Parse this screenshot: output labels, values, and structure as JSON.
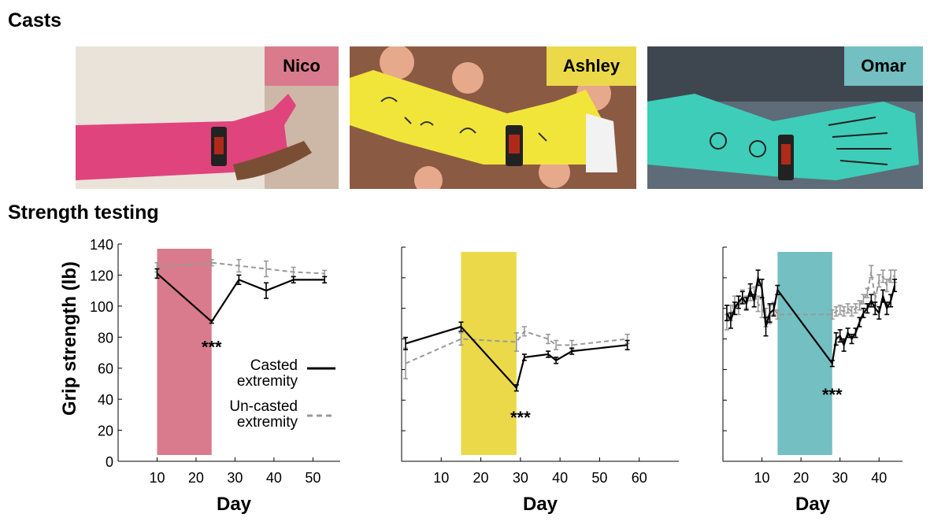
{
  "sections": {
    "casts_title": "Casts",
    "strength_title": "Strength testing"
  },
  "casts": [
    {
      "name": "Nico",
      "color": "#D97B8C",
      "cast_color": "#E0447C",
      "bg": "#CDB7A6"
    },
    {
      "name": "Ashley",
      "color": "#EBD94A",
      "cast_color": "#F2E53A",
      "bg": "#8B5A43"
    },
    {
      "name": "Omar",
      "color": "#73BFC2",
      "cast_color": "#3ECDB8",
      "bg": "#5D6C78"
    }
  ],
  "legend": {
    "casted_line1": "Casted",
    "casted_line2": "extremity",
    "uncasted_line1": "Un-casted",
    "uncasted_line2": "extremity"
  },
  "chart_data": [
    {
      "type": "line",
      "subject": "Nico",
      "ylabel": "Grip strength (lb)",
      "xlabel": "Day",
      "xlim": [
        0,
        57
      ],
      "ylim": [
        0,
        140
      ],
      "xticks": [
        10,
        20,
        30,
        40,
        50
      ],
      "yticks": [
        0,
        20,
        40,
        60,
        80,
        100,
        120,
        140
      ],
      "cast_period": [
        10,
        24
      ],
      "significance": {
        "label": "***",
        "x": 24,
        "y": 80
      },
      "series": [
        {
          "name": "Casted extremity",
          "style": "solid",
          "color": "#000000",
          "x": [
            10,
            24,
            31,
            38,
            45,
            53
          ],
          "y": [
            121,
            90,
            117,
            110,
            117,
            117
          ],
          "err": [
            3,
            1,
            3,
            5,
            2,
            2
          ]
        },
        {
          "name": "Un-casted extremity",
          "style": "dashed",
          "color": "#999999",
          "x": [
            10,
            24,
            31,
            38,
            45,
            53
          ],
          "y": [
            125,
            128,
            126,
            124,
            122,
            121
          ],
          "err": [
            3,
            2,
            4,
            5,
            3,
            2
          ]
        }
      ]
    },
    {
      "type": "line",
      "subject": "Ashley",
      "xlabel": "Day",
      "xlim": [
        0,
        70
      ],
      "ylim": [
        0,
        140
      ],
      "xticks": [
        10,
        20,
        30,
        40,
        50,
        60
      ],
      "yticks": [
        0,
        20,
        40,
        60,
        80,
        100,
        120,
        140
      ],
      "cast_period": [
        15,
        29
      ],
      "significance": {
        "label": "***",
        "x": 30,
        "y": 35
      },
      "series": [
        {
          "name": "Casted extremity",
          "style": "solid",
          "color": "#000000",
          "x": [
            1,
            15,
            29,
            31,
            37,
            39,
            43,
            57
          ],
          "y": [
            77,
            88,
            48,
            68,
            70,
            66,
            72,
            76
          ],
          "err": [
            4,
            3,
            2,
            2,
            2,
            2,
            2,
            3
          ]
        },
        {
          "name": "Un-casted extremity",
          "style": "dashed",
          "color": "#999999",
          "x": [
            1,
            15,
            29,
            31,
            37,
            39,
            43,
            57
          ],
          "y": [
            64,
            80,
            78,
            85,
            80,
            76,
            76,
            80
          ],
          "err": [
            10,
            4,
            6,
            3,
            3,
            3,
            3,
            3
          ]
        }
      ]
    },
    {
      "type": "line",
      "subject": "Omar",
      "xlabel": "Day",
      "xlim": [
        0,
        46
      ],
      "ylim": [
        0,
        140
      ],
      "xticks": [
        10,
        20,
        30,
        40
      ],
      "yticks": [
        0,
        20,
        40,
        60,
        80,
        100,
        120,
        140
      ],
      "cast_period": [
        14,
        28
      ],
      "significance": {
        "label": "***",
        "x": 28,
        "y": 50
      },
      "series": [
        {
          "name": "Casted extremity",
          "style": "solid",
          "color": "#000000",
          "x": [
            1,
            2,
            3,
            4,
            5,
            6,
            7,
            8,
            9,
            10,
            11,
            12,
            13,
            14,
            28,
            29,
            30,
            31,
            32,
            33,
            34,
            35,
            36,
            37,
            38,
            39,
            40,
            41,
            42,
            43,
            44
          ],
          "y": [
            97,
            92,
            100,
            104,
            107,
            103,
            112,
            105,
            120,
            113,
            88,
            97,
            99,
            112,
            64,
            80,
            82,
            76,
            84,
            80,
            84,
            91,
            97,
            100,
            105,
            100,
            97,
            108,
            100,
            105,
            115
          ],
          "err": [
            5,
            5,
            4,
            4,
            4,
            4,
            4,
            4,
            5,
            6,
            6,
            6,
            4,
            3,
            2,
            4,
            4,
            4,
            3,
            3,
            3,
            3,
            3,
            3,
            4,
            4,
            4,
            4,
            4,
            4,
            4
          ]
        },
        {
          "name": "Un-casted extremity",
          "style": "dashed",
          "color": "#999999",
          "x": [
            1,
            2,
            3,
            4,
            5,
            6,
            7,
            8,
            9,
            10,
            11,
            12,
            13,
            14,
            28,
            29,
            30,
            31,
            32,
            33,
            34,
            35,
            36,
            37,
            38,
            39,
            40,
            41,
            42,
            43,
            44
          ],
          "y": [
            91,
            97,
            104,
            100,
            108,
            104,
            109,
            110,
            103,
            100,
            94,
            96,
            100,
            96,
            96,
            98,
            99,
            98,
            100,
            98,
            100,
            102,
            106,
            110,
            124,
            106,
            118,
            121,
            115,
            121,
            121
          ],
          "err": [
            5,
            5,
            4,
            4,
            4,
            4,
            4,
            4,
            5,
            6,
            6,
            6,
            4,
            3,
            3,
            3,
            3,
            3,
            3,
            3,
            3,
            3,
            3,
            3,
            4,
            4,
            4,
            4,
            4,
            4,
            4
          ]
        }
      ]
    }
  ]
}
